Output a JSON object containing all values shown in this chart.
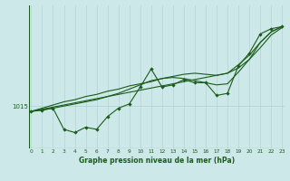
{
  "title": "Graphe pression niveau de la mer (hPa)",
  "background_color": "#cde8e8",
  "plot_bg_color": "#cde8e8",
  "line_color": "#1a5c1a",
  "grid_color": "#b0d4d4",
  "hours": [
    0,
    1,
    2,
    3,
    4,
    5,
    6,
    7,
    8,
    9,
    10,
    11,
    12,
    13,
    14,
    15,
    16,
    17,
    18,
    19,
    20,
    21,
    22,
    23
  ],
  "series_jagged": [
    1014.5,
    1014.6,
    1014.8,
    1012.8,
    1012.5,
    1013.0,
    1012.8,
    1014.0,
    1014.8,
    1015.2,
    1016.8,
    1018.5,
    1016.8,
    1017.0,
    1017.5,
    1017.2,
    1017.2,
    1016.0,
    1016.2,
    1018.8,
    1020.0,
    1021.8,
    1022.3,
    1022.5
  ],
  "series_trend1": [
    1014.5,
    1014.7,
    1014.9,
    1015.1,
    1015.3,
    1015.5,
    1015.7,
    1015.9,
    1016.1,
    1016.3,
    1016.5,
    1016.7,
    1016.9,
    1017.1,
    1017.3,
    1017.5,
    1017.7,
    1017.9,
    1018.1,
    1018.6,
    1019.4,
    1020.5,
    1021.7,
    1022.4
  ],
  "series_trend2": [
    1014.5,
    1014.8,
    1015.1,
    1015.4,
    1015.6,
    1015.9,
    1016.1,
    1016.4,
    1016.6,
    1016.9,
    1017.1,
    1017.3,
    1017.6,
    1017.8,
    1018.0,
    1018.1,
    1018.0,
    1017.9,
    1018.1,
    1018.9,
    1019.8,
    1021.0,
    1022.0,
    1022.5
  ],
  "series_trend3": [
    1014.5,
    1014.65,
    1014.8,
    1015.0,
    1015.2,
    1015.4,
    1015.6,
    1015.9,
    1016.2,
    1016.6,
    1017.0,
    1017.4,
    1017.6,
    1017.7,
    1017.6,
    1017.4,
    1017.2,
    1017.0,
    1017.1,
    1018.2,
    1019.4,
    1021.0,
    1022.0,
    1022.5
  ],
  "ytick_val": 1015.0,
  "ylim_min": 1011.0,
  "ylim_max": 1024.5,
  "xlim_min": -0.2,
  "xlim_max": 23.2
}
